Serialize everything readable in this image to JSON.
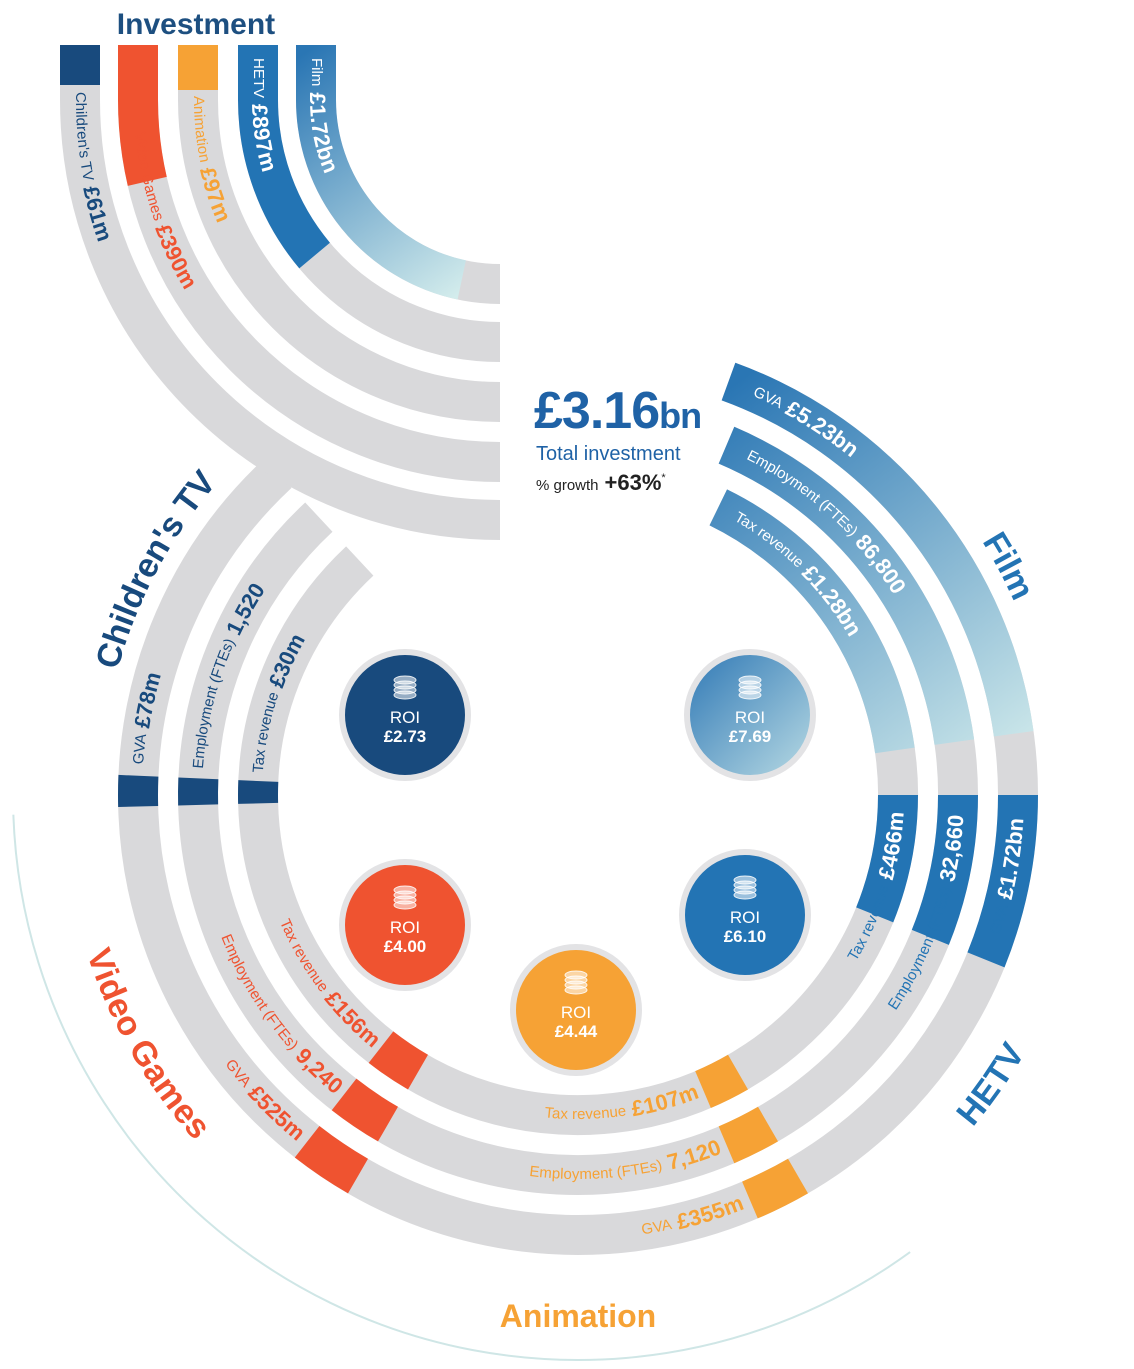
{
  "title": "Investment",
  "investment": [
    {
      "label": "Children's TV",
      "value": "£61m"
    },
    {
      "label": "Video Games",
      "value": "£390m"
    },
    {
      "label": "Animation",
      "value": "£97m"
    },
    {
      "label": "HETV",
      "value": "£897m"
    },
    {
      "label": "Film",
      "value": "£1.72bn"
    }
  ],
  "total": {
    "value": "£3.16",
    "unit": "bn",
    "label": "Total investment",
    "growth_label": "% growth",
    "growth": "+63%",
    "note": "*"
  },
  "sectors": [
    {
      "name": "Children's TV",
      "gva_label": "GVA",
      "gva": "£78m",
      "employment_label": "Employment (FTEs)",
      "employment": "1,520",
      "tax_label": "Tax revenue",
      "tax": "£30m",
      "roi_label": "ROI",
      "roi": "£2.73"
    },
    {
      "name": "Film",
      "gva_label": "GVA",
      "gva": "£5.23bn",
      "employment_label": "Employment (FTEs)",
      "employment": "86,800",
      "tax_label": "Tax revenue",
      "tax": "£1.28bn",
      "roi_label": "ROI",
      "roi": "£7.69"
    },
    {
      "name": "HETV",
      "gva_label": "GVA",
      "gva": "£1.72bn",
      "employment_label": "Employment (FTEs)",
      "employment": "32,660",
      "tax_label": "Tax revenue",
      "tax": "£466m",
      "roi_label": "ROI",
      "roi": "£6.10"
    },
    {
      "name": "Video Games",
      "gva_label": "GVA",
      "gva": "£525m",
      "employment_label": "Employment (FTEs)",
      "employment": "9,240",
      "tax_label": "Tax revenue",
      "tax": "£156m",
      "roi_label": "ROI",
      "roi": "£4.00"
    },
    {
      "name": "Animation",
      "gva_label": "GVA",
      "gva": "£355m",
      "employment_label": "Employment (FTEs)",
      "employment": "7,120",
      "tax_label": "Tax revenue",
      "tax": "£107m",
      "roi_label": "ROI",
      "roi": "£4.44"
    }
  ]
}
